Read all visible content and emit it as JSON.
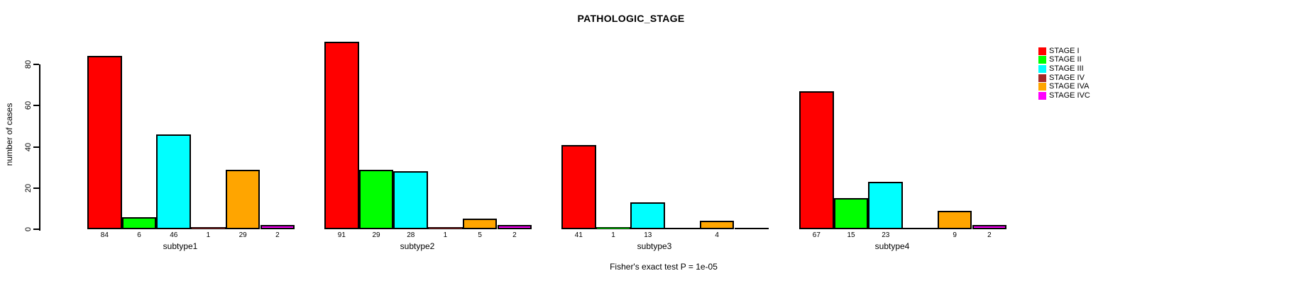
{
  "chart_data": {
    "type": "bar",
    "title": "PATHOLOGIC_STAGE",
    "ylabel": "number of cases",
    "xlabel": "",
    "note": "Fisher's exact test P = 1e-05",
    "categories": [
      "subtype1",
      "subtype2",
      "subtype3",
      "subtype4"
    ],
    "series": [
      {
        "name": "STAGE I",
        "color": "#FF0000",
        "values": [
          84,
          91,
          41,
          67
        ]
      },
      {
        "name": "STAGE II",
        "color": "#00FF00",
        "values": [
          6,
          29,
          1,
          15
        ]
      },
      {
        "name": "STAGE III",
        "color": "#00FFFF",
        "values": [
          46,
          28,
          13,
          23
        ]
      },
      {
        "name": "STAGE IV",
        "color": "#A52A2A",
        "values": [
          1,
          1,
          0,
          0
        ]
      },
      {
        "name": "STAGE IVA",
        "color": "#FFA500",
        "values": [
          29,
          5,
          4,
          9
        ]
      },
      {
        "name": "STAGE IVC",
        "color": "#FF00FF",
        "values": [
          2,
          2,
          0,
          2
        ]
      }
    ],
    "yticks": [
      0,
      20,
      40,
      60,
      80
    ],
    "ylim": [
      0,
      91
    ],
    "grid": false,
    "legend_position": "right",
    "bar_value_labels_shown": true,
    "zero_values_shown_as": "flat line, no label"
  }
}
